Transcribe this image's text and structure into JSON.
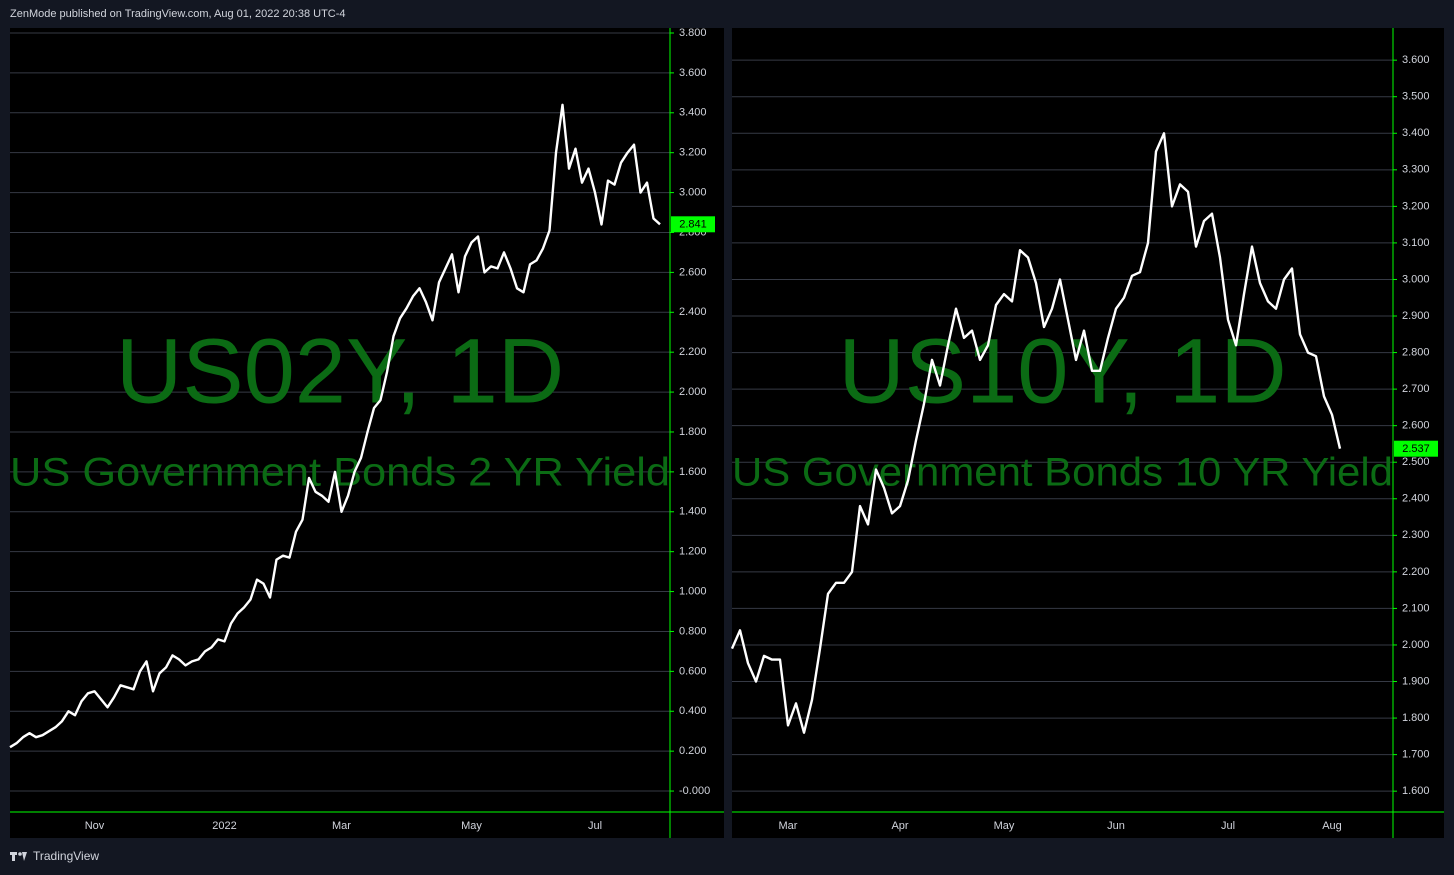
{
  "header": {
    "text": "ZenMode published on TradingView.com, Aug 01, 2022 20:38 UTC-4"
  },
  "footer": {
    "text": "TradingView"
  },
  "chart_data": [
    {
      "type": "line",
      "title": "US02Y, 1D",
      "subtitle": "US Government Bonds 2 YR Yield",
      "color": "#ffffff",
      "axis_color": "#00ff00",
      "grid": true,
      "categories": [
        null,
        null,
        null,
        null,
        null,
        null,
        null,
        null,
        null,
        null,
        null,
        null,
        null,
        "Nov",
        null,
        null,
        null,
        null,
        null,
        null,
        null,
        null,
        null,
        null,
        null,
        null,
        null,
        null,
        null,
        null,
        null,
        null,
        null,
        "2022",
        null,
        null,
        null,
        null,
        null,
        null,
        null,
        null,
        null,
        null,
        null,
        null,
        null,
        null,
        null,
        null,
        null,
        "Mar",
        null,
        null,
        null,
        null,
        null,
        null,
        null,
        null,
        null,
        null,
        null,
        null,
        null,
        null,
        null,
        null,
        null,
        null,
        null,
        "May",
        null,
        null,
        null,
        null,
        null,
        null,
        null,
        null,
        null,
        null,
        null,
        null,
        null,
        null,
        null,
        null,
        null,
        null,
        "Jul",
        null,
        null,
        null,
        null,
        null,
        null,
        null,
        null,
        null,
        null
      ],
      "values": [
        0.22,
        0.24,
        0.27,
        0.29,
        0.27,
        0.28,
        0.3,
        0.32,
        0.35,
        0.4,
        0.38,
        0.45,
        0.49,
        0.5,
        0.46,
        0.42,
        0.47,
        0.53,
        0.52,
        0.51,
        0.6,
        0.65,
        0.5,
        0.59,
        0.62,
        0.68,
        0.66,
        0.63,
        0.65,
        0.66,
        0.7,
        0.72,
        0.76,
        0.75,
        0.84,
        0.89,
        0.92,
        0.96,
        1.06,
        1.04,
        0.97,
        1.16,
        1.18,
        1.17,
        1.3,
        1.36,
        1.57,
        1.5,
        1.48,
        1.45,
        1.6,
        1.4,
        1.48,
        1.6,
        1.67,
        1.8,
        1.92,
        1.96,
        2.1,
        2.28,
        2.37,
        2.42,
        2.48,
        2.52,
        2.45,
        2.36,
        2.55,
        2.62,
        2.69,
        2.5,
        2.68,
        2.75,
        2.78,
        2.6,
        2.63,
        2.62,
        2.7,
        2.62,
        2.52,
        2.5,
        2.64,
        2.66,
        2.72,
        2.81,
        3.2,
        3.44,
        3.12,
        3.22,
        3.05,
        3.12,
        3.0,
        2.84,
        3.06,
        3.04,
        3.15,
        3.2,
        3.24,
        3.0,
        3.05,
        2.87,
        2.841
      ],
      "ylim": [
        -0.105,
        3.825
      ],
      "yticks": [
        {
          "value": 3.8,
          "label": "3.800"
        },
        {
          "value": 3.6,
          "label": "3.600"
        },
        {
          "value": 3.4,
          "label": "3.400"
        },
        {
          "value": 3.2,
          "label": "3.200"
        },
        {
          "value": 3.0,
          "label": "3.000"
        },
        {
          "value": 2.8,
          "label": "2.800"
        },
        {
          "value": 2.6,
          "label": "2.600"
        },
        {
          "value": 2.4,
          "label": "2.400"
        },
        {
          "value": 2.2,
          "label": "2.200"
        },
        {
          "value": 2.0,
          "label": "2.000"
        },
        {
          "value": 1.8,
          "label": "1.800"
        },
        {
          "value": 1.6,
          "label": "1.600"
        },
        {
          "value": 1.4,
          "label": "1.400"
        },
        {
          "value": 1.2,
          "label": "1.200"
        },
        {
          "value": 1.0,
          "label": "1.000"
        },
        {
          "value": 0.8,
          "label": "0.800"
        },
        {
          "value": 0.6,
          "label": "0.600"
        },
        {
          "value": 0.4,
          "label": "0.400"
        },
        {
          "value": 0.2,
          "label": "0.200"
        },
        {
          "value": 0,
          "label": "-0.000"
        }
      ]
    },
    {
      "type": "line",
      "title": "US10Y, 1D",
      "subtitle": "US Government Bonds 10 YR Yield",
      "color": "#ffffff",
      "axis_color": "#00ff00",
      "grid": true,
      "categories": [
        null,
        null,
        null,
        null,
        null,
        null,
        null,
        "Mar",
        null,
        null,
        null,
        null,
        null,
        null,
        null,
        null,
        null,
        null,
        null,
        null,
        null,
        "Apr",
        null,
        null,
        null,
        null,
        null,
        null,
        null,
        null,
        null,
        null,
        null,
        null,
        "May",
        null,
        null,
        null,
        null,
        null,
        null,
        null,
        null,
        null,
        null,
        null,
        null,
        null,
        "Jun",
        null,
        null,
        null,
        null,
        null,
        null,
        null,
        null,
        null,
        null,
        null,
        null,
        null,
        "Jul",
        null,
        null,
        null,
        null,
        null,
        null,
        null,
        null,
        null,
        null,
        null,
        null,
        "Aug",
        null
      ],
      "values": [
        1.99,
        2.04,
        1.95,
        1.9,
        1.97,
        1.96,
        1.96,
        1.78,
        1.84,
        1.76,
        1.85,
        1.99,
        2.14,
        2.17,
        2.17,
        2.2,
        2.38,
        2.33,
        2.48,
        2.43,
        2.36,
        2.38,
        2.45,
        2.56,
        2.66,
        2.78,
        2.71,
        2.82,
        2.92,
        2.84,
        2.86,
        2.78,
        2.82,
        2.93,
        2.96,
        2.94,
        3.08,
        3.06,
        2.99,
        2.87,
        2.92,
        3.0,
        2.89,
        2.78,
        2.86,
        2.75,
        2.75,
        2.84,
        2.92,
        2.95,
        3.01,
        3.02,
        3.1,
        3.35,
        3.4,
        3.2,
        3.26,
        3.24,
        3.09,
        3.16,
        3.18,
        3.06,
        2.89,
        2.82,
        2.96,
        3.09,
        2.99,
        2.94,
        2.92,
        3.0,
        3.03,
        2.85,
        2.8,
        2.79,
        2.68,
        2.63,
        2.537
      ],
      "ylim": [
        1.543,
        3.688
      ],
      "yticks": [
        {
          "value": 3.6,
          "label": "3.600"
        },
        {
          "value": 3.5,
          "label": "3.500"
        },
        {
          "value": 3.4,
          "label": "3.400"
        },
        {
          "value": 3.3,
          "label": "3.300"
        },
        {
          "value": 3.2,
          "label": "3.200"
        },
        {
          "value": 3.1,
          "label": "3.100"
        },
        {
          "value": 3.0,
          "label": "3.000"
        },
        {
          "value": 2.9,
          "label": "2.900"
        },
        {
          "value": 2.8,
          "label": "2.800"
        },
        {
          "value": 2.7,
          "label": "2.700"
        },
        {
          "value": 2.6,
          "label": "2.600"
        },
        {
          "value": 2.5,
          "label": "2.500"
        },
        {
          "value": 2.4,
          "label": "2.400"
        },
        {
          "value": 2.3,
          "label": "2.300"
        },
        {
          "value": 2.2,
          "label": "2.200"
        },
        {
          "value": 2.1,
          "label": "2.100"
        },
        {
          "value": 2.0,
          "label": "2.000"
        },
        {
          "value": 1.9,
          "label": "1.900"
        },
        {
          "value": 1.8,
          "label": "1.800"
        },
        {
          "value": 1.7,
          "label": "1.700"
        },
        {
          "value": 1.6,
          "label": "1.600"
        }
      ]
    }
  ]
}
